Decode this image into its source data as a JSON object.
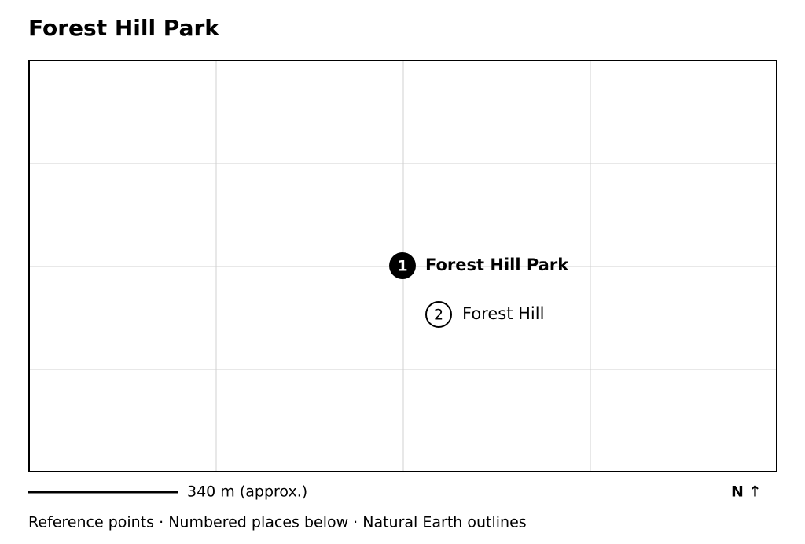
{
  "title": "Forest Hill Park",
  "places": [
    {
      "number": "1",
      "label": "Forest Hill Park"
    },
    {
      "number": "2",
      "label": "Forest Hill"
    }
  ],
  "scale": "340 m (approx.)",
  "north": "N ↑",
  "footer": "Reference points · Numbered places below · Natural Earth outlines"
}
